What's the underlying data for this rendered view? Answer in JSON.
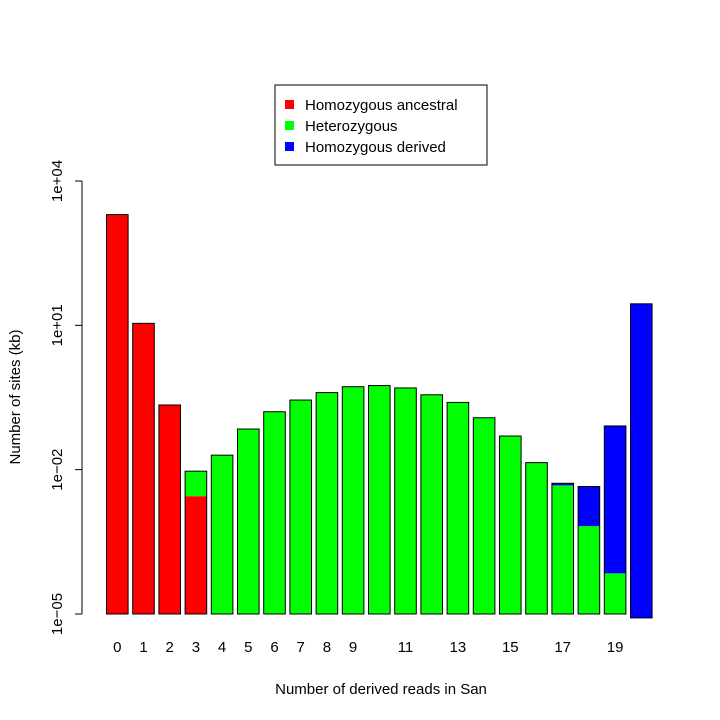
{
  "chart_data": {
    "type": "bar",
    "stacked": true,
    "log_scale_y": true,
    "xlabel": "Number of derived reads in San",
    "ylabel": "Number of sites (kb)",
    "ylim": [
      1e-05,
      10000
    ],
    "yticks": [
      1e-05,
      0.01,
      10,
      10000
    ],
    "ytick_labels": [
      "1e−05",
      "1e−02",
      "1e+01",
      "1e+04"
    ],
    "x": [
      0,
      1,
      2,
      3,
      4,
      5,
      6,
      7,
      8,
      9,
      10,
      11,
      12,
      13,
      14,
      15,
      16,
      17,
      18,
      19,
      20
    ],
    "xtick_labels": [
      "0",
      "1",
      "2",
      "3",
      "4",
      "5",
      "6",
      "7",
      "8",
      "9",
      "11",
      "13",
      "15",
      "17",
      "19"
    ],
    "xtick_positions": [
      0,
      1,
      2,
      3,
      4,
      5,
      6,
      7,
      8,
      9,
      11,
      13,
      15,
      17,
      19
    ],
    "series": [
      {
        "name": "Homozygous ancestral",
        "color": "#ff0000",
        "values": [
          2000,
          11,
          0.22,
          0.0028,
          0,
          0,
          0,
          0,
          0,
          0,
          0,
          0,
          0,
          0,
          0,
          0,
          0,
          0,
          0,
          0,
          0
        ]
      },
      {
        "name": "Heterozygous",
        "color": "#00ff00",
        "values": [
          1.3e-05,
          0.0002,
          0.001,
          0.0065,
          0.02,
          0.07,
          0.16,
          0.28,
          0.4,
          0.53,
          0.56,
          0.5,
          0.36,
          0.25,
          0.12,
          0.05,
          0.014,
          0.0047,
          0.00066,
          6e-05,
          0
        ]
      },
      {
        "name": "Homozygous derived",
        "color": "#0000ff",
        "values": [
          0,
          0,
          0,
          0,
          0,
          0,
          0,
          0,
          0,
          0,
          0,
          0,
          0,
          0,
          0,
          0,
          0,
          0.0005,
          0.0038,
          0.081,
          28
        ]
      }
    ],
    "bar_bottoms": [
      1e-05,
      1e-05,
      1e-05,
      1e-05,
      1e-05,
      1e-05,
      1e-05,
      1e-05,
      1e-05,
      1e-05,
      1e-05,
      1e-05,
      1e-05,
      1e-05,
      1e-05,
      1e-05,
      1e-05,
      1e-05,
      1e-05,
      1e-05,
      8.3e-06
    ],
    "legend": {
      "placement": "top-center",
      "entries": [
        "Homozygous ancestral",
        "Heterozygous",
        "Homozygous derived"
      ]
    },
    "grid": false
  }
}
